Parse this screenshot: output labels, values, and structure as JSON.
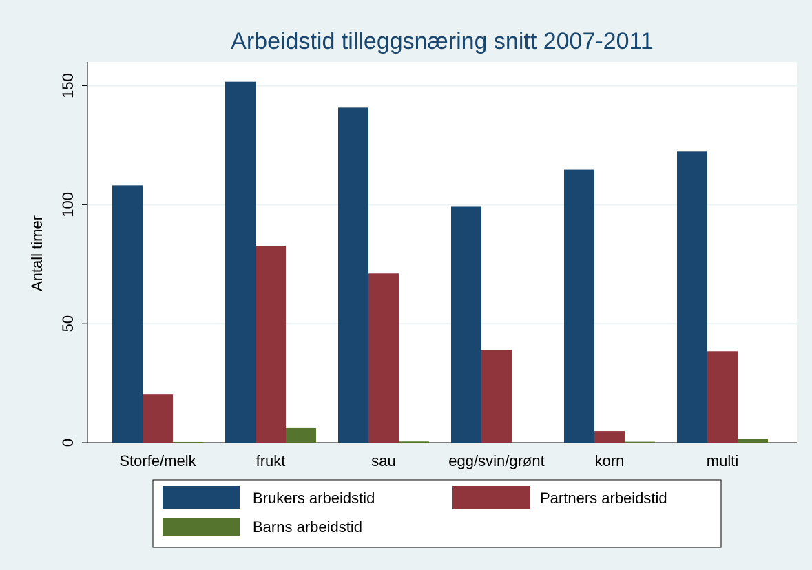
{
  "chart_data": {
    "type": "bar",
    "title": "Arbeidstid tilleggsnæring snitt 2007-2011",
    "y_label": "Antall timer",
    "categories": [
      "Storfe/melk",
      "frukt",
      "sau",
      "egg/svin/grønt",
      "korn",
      "multi"
    ],
    "series": [
      {
        "name": "Brukers arbeidstid",
        "color": "#1a476f",
        "values": [
          108.1,
          151.7,
          140.8,
          99.4,
          114.7,
          122.3
        ]
      },
      {
        "name": "Partners arbeidstid",
        "color": "#90353b",
        "values": [
          20.2,
          82.7,
          71.1,
          39.0,
          4.9,
          38.4
        ]
      },
      {
        "name": "Barns arbeidstid",
        "color": "#55752f",
        "values": [
          0.3,
          6.1,
          0.5,
          0,
          0.4,
          1.7
        ]
      }
    ],
    "ylim": [
      0,
      160
    ],
    "yticks": [
      0,
      50,
      100,
      150
    ],
    "grid": true
  }
}
